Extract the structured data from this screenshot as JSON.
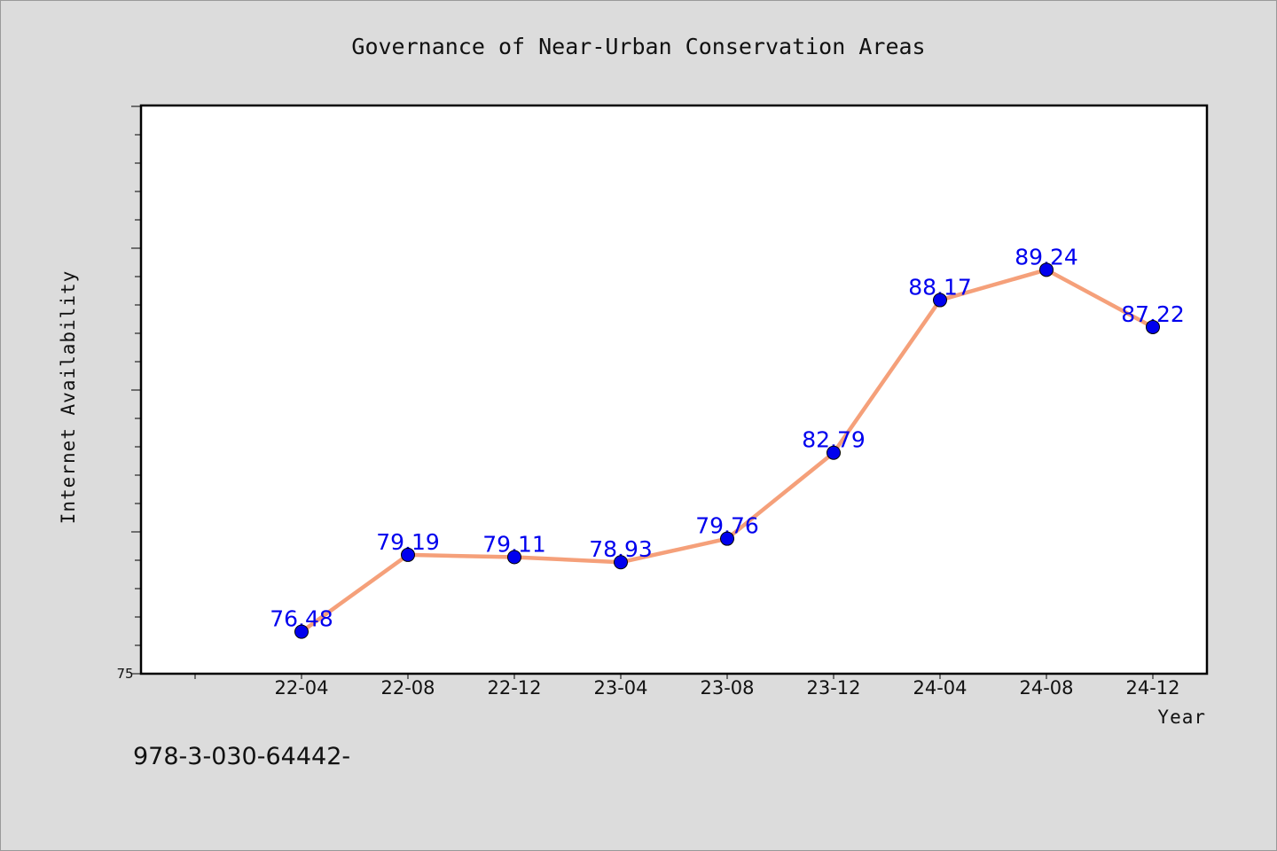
{
  "chart_data": {
    "type": "line",
    "title": "Governance of Near-Urban Conservation Areas",
    "xlabel": "Year",
    "ylabel": "Internet Availability",
    "categories": [
      "22-04",
      "22-08",
      "22-12",
      "23-04",
      "23-08",
      "23-12",
      "24-04",
      "24-08",
      "24-12"
    ],
    "series": [
      {
        "values": [
          76.48,
          79.19,
          79.11,
          78.93,
          79.76,
          82.79,
          88.17,
          89.24,
          87.22
        ]
      }
    ],
    "ylim": [
      75,
      95
    ],
    "y_tick_labels": [
      "75"
    ],
    "data_labels": [
      "76.48",
      "79.19",
      "79.11",
      "78.93",
      "79.76",
      "82.79",
      "88.17",
      "89.24",
      "87.22"
    ],
    "grid": false,
    "legend": "none",
    "colors": {
      "line": "#f5a07a",
      "marker": "#0000ee",
      "data_label": "#0000ee",
      "plot_background": "#ffffff",
      "page_background": "#dcdcdc"
    }
  },
  "footer_text": "978-3-030-64442-"
}
